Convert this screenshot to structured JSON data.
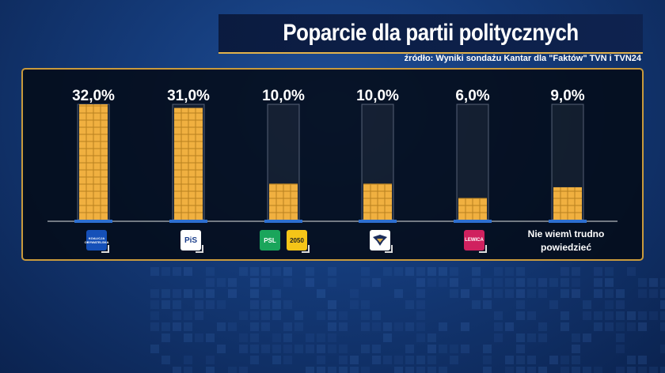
{
  "title": "Poparcie dla partii politycznych",
  "source": "źródło: Wyniki sondażu Kantar dla \"Faktów\" TVN i TVN24",
  "colors": {
    "bar": "#f0b040",
    "grid": "#b8811f",
    "accent": "#e3b34c"
  },
  "chart_data": {
    "type": "bar",
    "title": "Poparcie dla partii politycznych",
    "categories": [
      "Koalicja Obywatelska",
      "PiS",
      "PSL / Polska 2050",
      "Konfederacja",
      "Lewica",
      "Nie wiem\\ trudno powiedzieć"
    ],
    "values": [
      32.0,
      31.0,
      10.0,
      10.0,
      6.0,
      9.0
    ],
    "value_labels": [
      "32,0%",
      "31,0%",
      "10,0%",
      "10,0%",
      "6,0%",
      "9,0%"
    ],
    "ylim": [
      0,
      32
    ],
    "xlabel": "",
    "ylabel": "",
    "grid": false,
    "legend": "none"
  },
  "logos": [
    {
      "icon": "ko-logo-icon",
      "text": "KOALICJA OBYWATELSKA",
      "color": "#1550b8"
    },
    {
      "icon": "pis-logo-icon",
      "text": "PiS",
      "color": "#ffffff"
    },
    {
      "icon": "psl-logo-icon",
      "text": "PSL",
      "color": "#1aa55b"
    },
    {
      "icon": "polska2050-logo-icon",
      "text": "2050",
      "color": "#f5c518"
    },
    {
      "icon": "konfederacja-logo-icon",
      "text": "",
      "color": "#ffffff"
    },
    {
      "icon": "lewica-logo-icon",
      "text": "LEWICA",
      "color": "#d0215f"
    }
  ],
  "dont_know_label": "Nie wiem\\ trudno powiedzieć"
}
